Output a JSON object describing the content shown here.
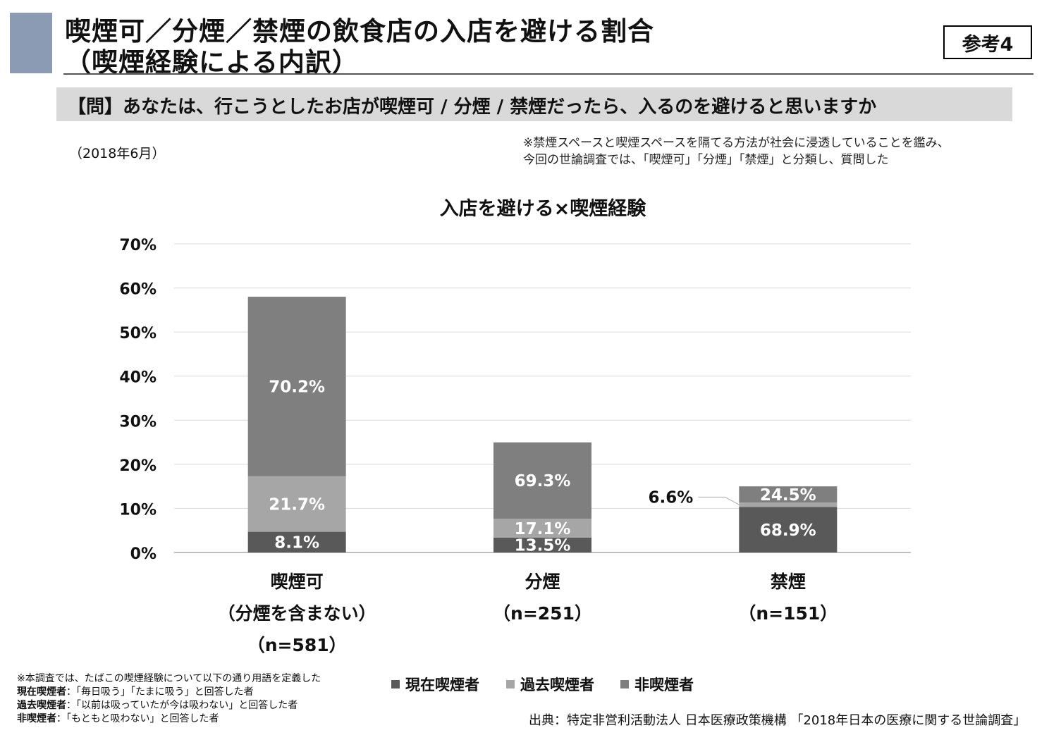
{
  "header": {
    "title_line1": "喫煙可／分煙／禁煙の飲食店の入店を避ける割合",
    "title_line2": "（喫煙経験による内訳）",
    "reference_label": "参考4"
  },
  "question": "【問】あなたは、行こうとしたお店が喫煙可 / 分煙 / 禁煙だったら、入るのを避けると思いますか",
  "survey_date": "（2018年6月）",
  "note": {
    "line1": "※禁煙スペースと喫煙スペースを隔てる方法が社会に浸透していることを鑑み、",
    "line2": "今回の世論調査では、「喫煙可」「分煙」「禁煙」と分類し、質問した"
  },
  "chart_data": {
    "type": "bar",
    "stacked": true,
    "title": "入店を避ける×喫煙経験",
    "categories": [
      {
        "lines": [
          "喫煙可",
          "（分煙を含まない）",
          "（n=581）"
        ]
      },
      {
        "lines": [
          "分煙",
          "（n=251）"
        ]
      },
      {
        "lines": [
          "禁煙",
          "（n=151）"
        ]
      }
    ],
    "totals": [
      58,
      25,
      15
    ],
    "series": [
      {
        "name": "現在喫煙者",
        "color": "#595959",
        "shares": [
          8.1,
          13.5,
          68.9
        ],
        "labels": [
          "8.1%",
          "13.5%",
          "68.9%"
        ]
      },
      {
        "name": "過去喫煙者",
        "color": "#a6a6a6",
        "shares": [
          21.7,
          17.1,
          6.6
        ],
        "labels": [
          "21.7%",
          "17.1%",
          "6.6%"
        ]
      },
      {
        "name": "非喫煙者",
        "color": "#7f7f7f",
        "shares": [
          70.2,
          69.3,
          24.5
        ],
        "labels": [
          "70.2%",
          "69.3%",
          "24.5%"
        ]
      }
    ],
    "y_ticks": [
      "0%",
      "10%",
      "20%",
      "30%",
      "40%",
      "50%",
      "60%",
      "70%"
    ],
    "ylim": [
      0,
      70
    ],
    "grid": true,
    "legend_position": "bottom"
  },
  "footnotes": {
    "intro": "※本調査では、たばこの喫煙経験について以下の通り用語を定義した",
    "current_term": "現在喫煙者",
    "current_def": "：「毎日吸う」「たまに吸う」と回答した者",
    "past_term": "過去喫煙者",
    "past_def": "：「以前は吸っていたが今は吸わない」と回答した者",
    "never_term": "非喫煙者",
    "never_def": "：「もともと吸わない」と回答した者"
  },
  "source": "出典：特定非営利活動法人 日本医療政策機構 「2018年日本の医療に関する世論調査」"
}
